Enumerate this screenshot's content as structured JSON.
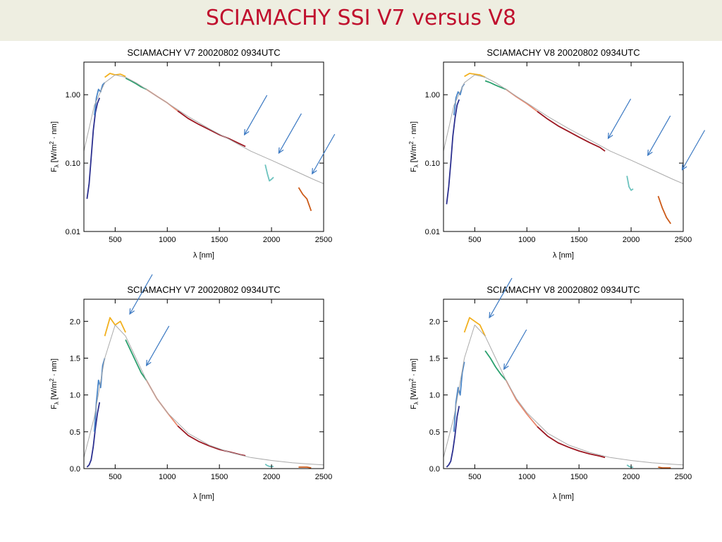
{
  "slide": {
    "title": "SCIAMACHY SSI V7 versus V8"
  },
  "colors": {
    "title": "#c0102e",
    "reference": "#aaaaaa",
    "arrow": "#3a78c2",
    "channels": [
      "#2b2f8f",
      "#4a86c8",
      "#f2b01e",
      "#2aa06e",
      "#e8886e",
      "#9b1620",
      "#6cc3be",
      "#cc5a18"
    ]
  },
  "panels": [
    {
      "title": "SCIAMACHY V7 20020802 0934UTC",
      "xlabel": "λ [nm]",
      "ylabel_main": "F",
      "ylabel_sub": "λ",
      "ylabel_rest": " [W/m",
      "ylabel_sup": "2",
      "ylabel_end": " · nm]",
      "xticks": [
        "500",
        "1000",
        "1500",
        "2000",
        "2500"
      ],
      "yticks": [
        "1.00",
        "0.10",
        "0.01"
      ]
    },
    {
      "title": "SCIAMACHY V8 20020802 0934UTC",
      "xlabel": "λ [nm]",
      "ylabel_main": "F",
      "ylabel_sub": "λ",
      "ylabel_rest": " [W/m",
      "ylabel_sup": "2",
      "ylabel_end": " · nm]",
      "xticks": [
        "500",
        "1000",
        "1500",
        "2000",
        "2500"
      ],
      "yticks": [
        "1.00",
        "0.10",
        "0.01"
      ]
    },
    {
      "title": "SCIAMACHY V7 20020802 0934UTC",
      "xlabel": "λ [nm]",
      "ylabel_main": "F",
      "ylabel_sub": "λ",
      "ylabel_rest": " [W/m",
      "ylabel_sup": "2",
      "ylabel_end": " · nm]",
      "xticks": [
        "500",
        "1000",
        "1500",
        "2000",
        "2500"
      ],
      "yticks": [
        "2.0",
        "1.5",
        "1.0",
        "0.5",
        "0.0"
      ]
    },
    {
      "title": "SCIAMACHY V8 20020802 0934UTC",
      "xlabel": "λ [nm]",
      "ylabel_main": "F",
      "ylabel_sub": "λ",
      "ylabel_rest": " [W/m",
      "ylabel_sup": "2",
      "ylabel_end": " · nm]",
      "xticks": [
        "500",
        "1000",
        "1500",
        "2000",
        "2500"
      ],
      "yticks": [
        "2.0",
        "1.5",
        "1.0",
        "0.5",
        "0.0"
      ]
    }
  ],
  "chart_data": [
    {
      "type": "line",
      "title": "SCIAMACHY V7 20020802 0934UTC",
      "xlabel": "λ [nm]",
      "ylabel": "Fλ [W/m² · nm]",
      "yscale": "log",
      "xlim": [
        200,
        2500
      ],
      "ylim": [
        0.01,
        3.0
      ],
      "grid": false,
      "series": [
        {
          "x": [
            230,
            250,
            270,
            290,
            310,
            330,
            350
          ],
          "y": [
            0.03,
            0.05,
            0.12,
            0.3,
            0.55,
            0.75,
            0.9
          ]
        },
        {
          "x": [
            300,
            320,
            340,
            360,
            380,
            400
          ],
          "y": [
            0.5,
            0.9,
            1.2,
            1.1,
            1.4,
            1.5
          ]
        },
        {
          "x": [
            400,
            450,
            500,
            550,
            600
          ],
          "y": [
            1.8,
            2.05,
            1.95,
            2.0,
            1.85
          ]
        },
        {
          "x": [
            600,
            650,
            700,
            750,
            800
          ],
          "y": [
            1.75,
            1.6,
            1.45,
            1.3,
            1.2
          ]
        },
        {
          "x": [
            800,
            900,
            1000,
            1100
          ],
          "y": [
            1.2,
            0.95,
            0.76,
            0.58
          ]
        },
        {
          "x": [
            1100,
            1200,
            1300,
            1400,
            1500,
            1600,
            1700,
            1750
          ],
          "y": [
            0.58,
            0.45,
            0.37,
            0.31,
            0.26,
            0.225,
            0.19,
            0.175
          ]
        },
        {
          "x": [
            1940,
            1960,
            1980,
            2000,
            2020
          ],
          "y": [
            0.095,
            0.07,
            0.055,
            0.058,
            0.062
          ]
        },
        {
          "x": [
            2260,
            2300,
            2340,
            2380
          ],
          "y": [
            0.044,
            0.035,
            0.03,
            0.02
          ]
        },
        {
          "x": [
            200,
            300,
            400,
            500,
            600,
            700,
            800,
            900,
            1000,
            1200,
            1400,
            1600,
            1800,
            2000,
            2200,
            2400,
            2500
          ],
          "y": [
            0.15,
            0.7,
            1.5,
            1.95,
            1.8,
            1.5,
            1.2,
            0.95,
            0.76,
            0.48,
            0.32,
            0.22,
            0.15,
            0.11,
            0.08,
            0.058,
            0.05
          ]
        }
      ],
      "annotations": [
        {
          "type": "arrow",
          "x": 1740,
          "y": 0.26
        },
        {
          "type": "arrow",
          "x": 2070,
          "y": 0.14
        },
        {
          "type": "arrow",
          "x": 2390,
          "y": 0.07
        }
      ]
    },
    {
      "type": "line",
      "title": "SCIAMACHY V8 20020802 0934UTC",
      "xlabel": "λ [nm]",
      "ylabel": "Fλ [W/m² · nm]",
      "yscale": "log",
      "xlim": [
        200,
        2500
      ],
      "ylim": [
        0.01,
        3.0
      ],
      "grid": false,
      "series": [
        {
          "x": [
            230,
            250,
            270,
            290,
            310,
            330,
            350
          ],
          "y": [
            0.025,
            0.045,
            0.1,
            0.25,
            0.45,
            0.7,
            0.85
          ]
        },
        {
          "x": [
            300,
            320,
            340,
            360,
            380,
            400
          ],
          "y": [
            0.5,
            0.9,
            1.1,
            1.0,
            1.3,
            1.45
          ]
        },
        {
          "x": [
            400,
            450,
            500,
            550,
            600
          ],
          "y": [
            1.85,
            2.05,
            2.0,
            1.95,
            1.8
          ]
        },
        {
          "x": [
            600,
            650,
            700,
            750,
            800
          ],
          "y": [
            1.6,
            1.5,
            1.38,
            1.28,
            1.2
          ]
        },
        {
          "x": [
            800,
            900,
            1000,
            1100
          ],
          "y": [
            1.2,
            0.93,
            0.74,
            0.57
          ]
        },
        {
          "x": [
            1100,
            1200,
            1300,
            1400,
            1500,
            1600,
            1700,
            1750
          ],
          "y": [
            0.57,
            0.44,
            0.35,
            0.29,
            0.24,
            0.2,
            0.17,
            0.15
          ]
        },
        {
          "x": [
            1960,
            1980,
            2000,
            2020
          ],
          "y": [
            0.065,
            0.045,
            0.04,
            0.042
          ]
        },
        {
          "x": [
            2260,
            2300,
            2340,
            2380
          ],
          "y": [
            0.033,
            0.022,
            0.016,
            0.013
          ]
        },
        {
          "x": [
            200,
            300,
            400,
            500,
            600,
            700,
            800,
            900,
            1000,
            1200,
            1400,
            1600,
            1800,
            2000,
            2200,
            2400,
            2500
          ],
          "y": [
            0.15,
            0.7,
            1.5,
            1.95,
            1.8,
            1.5,
            1.2,
            0.95,
            0.76,
            0.48,
            0.32,
            0.22,
            0.15,
            0.11,
            0.08,
            0.058,
            0.05
          ]
        }
      ],
      "annotations": [
        {
          "type": "arrow",
          "x": 1780,
          "y": 0.23
        },
        {
          "type": "arrow",
          "x": 2160,
          "y": 0.13
        },
        {
          "type": "arrow",
          "x": 2490,
          "y": 0.08
        }
      ]
    },
    {
      "type": "line",
      "title": "SCIAMACHY V7 20020802 0934UTC",
      "xlabel": "λ [nm]",
      "ylabel": "Fλ [W/m² · nm]",
      "yscale": "linear",
      "xlim": [
        200,
        2500
      ],
      "ylim": [
        0.0,
        2.3
      ],
      "grid": false,
      "series": [
        {
          "x": [
            230,
            250,
            270,
            290,
            310,
            330,
            350
          ],
          "y": [
            0.02,
            0.05,
            0.12,
            0.3,
            0.55,
            0.75,
            0.9
          ]
        },
        {
          "x": [
            300,
            320,
            340,
            360,
            380,
            400
          ],
          "y": [
            0.5,
            0.9,
            1.2,
            1.1,
            1.4,
            1.5
          ]
        },
        {
          "x": [
            400,
            450,
            500,
            550,
            600
          ],
          "y": [
            1.8,
            2.05,
            1.95,
            2.0,
            1.85
          ]
        },
        {
          "x": [
            600,
            650,
            700,
            750,
            800
          ],
          "y": [
            1.75,
            1.6,
            1.45,
            1.3,
            1.2
          ]
        },
        {
          "x": [
            800,
            900,
            1000,
            1100
          ],
          "y": [
            1.2,
            0.95,
            0.76,
            0.58
          ]
        },
        {
          "x": [
            1100,
            1200,
            1300,
            1400,
            1500,
            1600,
            1700,
            1750
          ],
          "y": [
            0.58,
            0.45,
            0.37,
            0.31,
            0.26,
            0.225,
            0.19,
            0.175
          ]
        },
        {
          "x": [
            1940,
            1960,
            1980,
            2000,
            2020
          ],
          "y": [
            0.06,
            0.04,
            0.03,
            0.03,
            0.03
          ]
        },
        {
          "x": [
            2260,
            2300,
            2340,
            2380
          ],
          "y": [
            0.02,
            0.02,
            0.02,
            0.01
          ]
        },
        {
          "x": [
            200,
            300,
            400,
            500,
            600,
            700,
            800,
            900,
            1000,
            1200,
            1400,
            1600,
            1800,
            2000,
            2200,
            2400,
            2500
          ],
          "y": [
            0.15,
            0.7,
            1.5,
            1.95,
            1.8,
            1.5,
            1.2,
            0.95,
            0.76,
            0.48,
            0.32,
            0.22,
            0.15,
            0.11,
            0.08,
            0.058,
            0.05
          ]
        }
      ],
      "annotations": [
        {
          "type": "arrow",
          "x": 640,
          "y": 2.1
        },
        {
          "type": "arrow",
          "x": 800,
          "y": 1.4
        }
      ]
    },
    {
      "type": "line",
      "title": "SCIAMACHY V8 20020802 0934UTC",
      "xlabel": "λ [nm]",
      "ylabel": "Fλ [W/m² · nm]",
      "yscale": "linear",
      "xlim": [
        200,
        2500
      ],
      "ylim": [
        0.0,
        2.3
      ],
      "grid": false,
      "series": [
        {
          "x": [
            230,
            250,
            270,
            290,
            310,
            330,
            350
          ],
          "y": [
            0.02,
            0.05,
            0.1,
            0.25,
            0.45,
            0.7,
            0.85
          ]
        },
        {
          "x": [
            300,
            320,
            340,
            360,
            380,
            400
          ],
          "y": [
            0.5,
            0.9,
            1.1,
            1.0,
            1.3,
            1.45
          ]
        },
        {
          "x": [
            400,
            450,
            500,
            550,
            600
          ],
          "y": [
            1.85,
            2.05,
            2.0,
            1.95,
            1.8
          ]
        },
        {
          "x": [
            600,
            650,
            700,
            750,
            800
          ],
          "y": [
            1.6,
            1.5,
            1.38,
            1.28,
            1.2
          ]
        },
        {
          "x": [
            800,
            900,
            1000,
            1100
          ],
          "y": [
            1.2,
            0.93,
            0.74,
            0.57
          ]
        },
        {
          "x": [
            1100,
            1200,
            1300,
            1400,
            1500,
            1600,
            1700,
            1750
          ],
          "y": [
            0.57,
            0.44,
            0.35,
            0.29,
            0.24,
            0.2,
            0.17,
            0.15
          ]
        },
        {
          "x": [
            1960,
            1980,
            2000,
            2020
          ],
          "y": [
            0.05,
            0.03,
            0.02,
            0.02
          ]
        },
        {
          "x": [
            2260,
            2300,
            2340,
            2380
          ],
          "y": [
            0.02,
            0.01,
            0.01,
            0.01
          ]
        },
        {
          "x": [
            200,
            300,
            400,
            500,
            600,
            700,
            800,
            900,
            1000,
            1200,
            1400,
            1600,
            1800,
            2000,
            2200,
            2400,
            2500
          ],
          "y": [
            0.15,
            0.7,
            1.5,
            1.95,
            1.8,
            1.5,
            1.2,
            0.95,
            0.76,
            0.48,
            0.32,
            0.22,
            0.15,
            0.11,
            0.08,
            0.058,
            0.05
          ]
        }
      ],
      "annotations": [
        {
          "type": "arrow",
          "x": 640,
          "y": 2.05
        },
        {
          "type": "arrow",
          "x": 780,
          "y": 1.35
        }
      ]
    }
  ]
}
